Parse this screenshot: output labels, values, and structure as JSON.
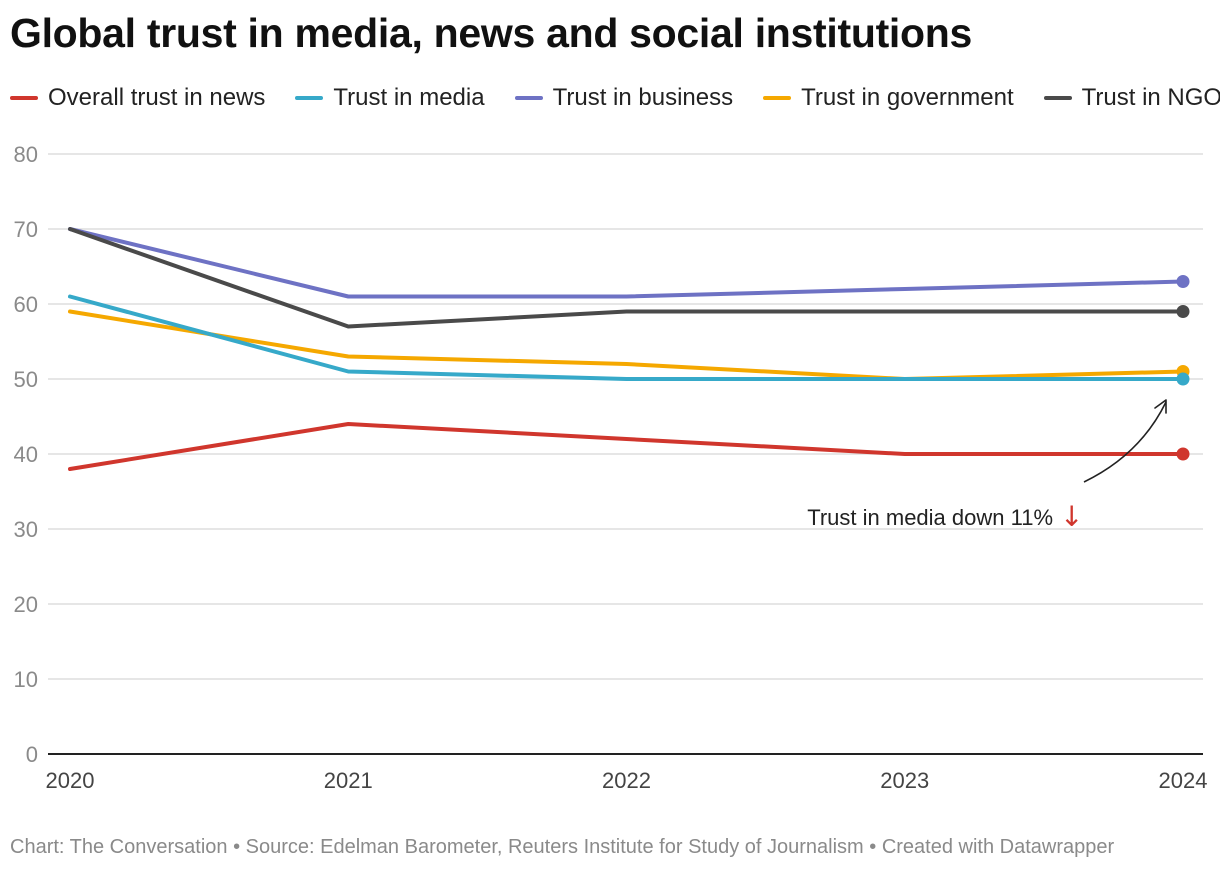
{
  "header": {
    "title": "Global trust in media, news and social institutions"
  },
  "colors": {
    "overall_news": "#d0362d",
    "media": "#36a9c9",
    "business": "#6e72c4",
    "government": "#f5a800",
    "ngos": "#4a4a4a",
    "grid": "#dddddd",
    "axis": "#222222"
  },
  "chart_data": {
    "type": "line",
    "title": "Global trust in media, news and social institutions",
    "xlabel": "",
    "ylabel": "",
    "x": [
      "2020",
      "2021",
      "2022",
      "2023",
      "2024"
    ],
    "ylim": [
      0,
      80
    ],
    "yticks": [
      0,
      10,
      20,
      30,
      40,
      50,
      60,
      70,
      80
    ],
    "grid": true,
    "legend_position": "top",
    "series": [
      {
        "name": "Overall trust in news",
        "color": "#d0362d",
        "values": [
          38,
          44,
          42,
          40,
          40
        ]
      },
      {
        "name": "Trust in media",
        "color": "#36a9c9",
        "values": [
          61,
          51,
          50,
          50,
          50
        ]
      },
      {
        "name": "Trust in business",
        "color": "#6e72c4",
        "values": [
          70,
          61,
          61,
          62,
          63
        ]
      },
      {
        "name": "Trust in government",
        "color": "#f5a800",
        "values": [
          59,
          53,
          52,
          50,
          51
        ]
      },
      {
        "name": "Trust in NGOs",
        "color": "#4a4a4a",
        "values": [
          70,
          57,
          59,
          59,
          59
        ]
      }
    ],
    "annotation": {
      "text": "Trust in media down 11%",
      "symbol": "↓"
    }
  },
  "footer": {
    "text": "Chart: The Conversation • Source: Edelman Barometer, Reuters Institute for Study of Journalism  • Created with Datawrapper"
  }
}
